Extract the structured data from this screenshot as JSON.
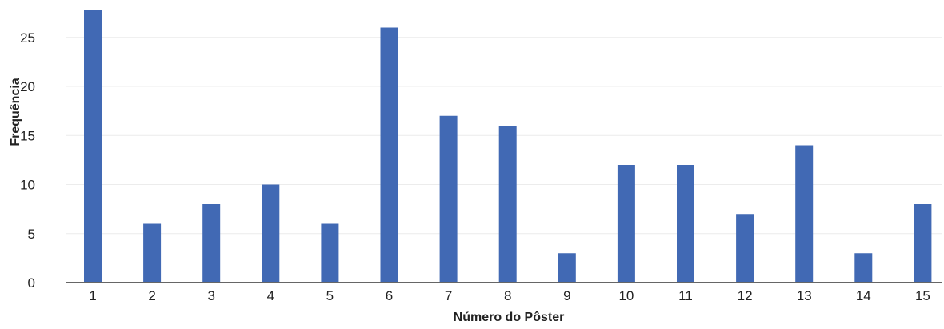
{
  "chart_data": {
    "type": "bar",
    "title": "",
    "xlabel": "Número do Pôster",
    "ylabel": "Frequência",
    "categories": [
      "1",
      "2",
      "3",
      "4",
      "5",
      "6",
      "7",
      "8",
      "9",
      "10",
      "11",
      "12",
      "13",
      "14",
      "15"
    ],
    "values": [
      28,
      6,
      8,
      10,
      6,
      26,
      17,
      16,
      3,
      12,
      12,
      7,
      14,
      3,
      8
    ],
    "ylim": [
      0,
      28
    ],
    "yticks": [
      "0",
      "5",
      "10",
      "15",
      "20",
      "25"
    ],
    "grid": true,
    "bar_color": "#4169b4",
    "axis_color": "#666666"
  }
}
